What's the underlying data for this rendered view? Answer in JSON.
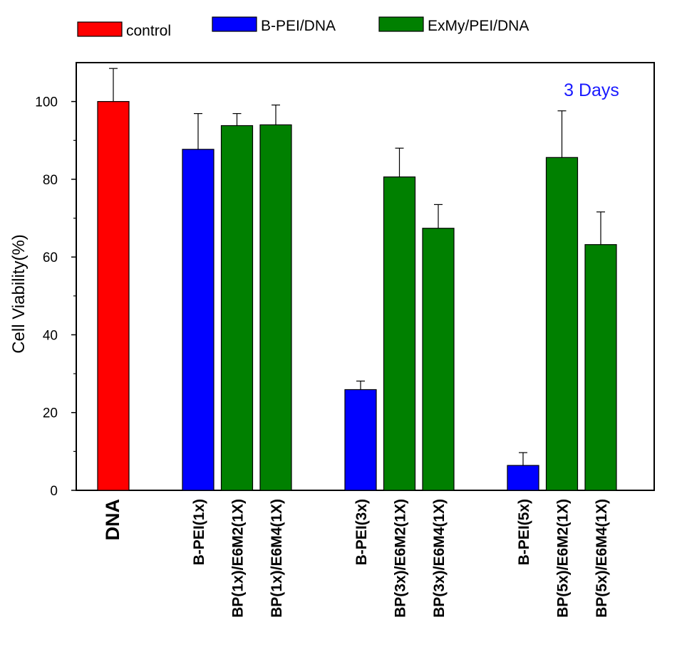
{
  "chart_data": {
    "type": "bar",
    "title": "",
    "xlabel": "",
    "ylabel": "Cell Viability(%)",
    "ylim": [
      0,
      110
    ],
    "yticks": [
      0,
      20,
      40,
      60,
      80,
      100
    ],
    "grid": false,
    "legend_position": "top",
    "annotation": {
      "text": "3 Days",
      "color": "#1a1aff",
      "position": "top-right"
    },
    "series": [
      {
        "name": "control",
        "color": "#ff0000"
      },
      {
        "name": "B-PEI/DNA",
        "color": "#0000ff"
      },
      {
        "name": "ExMy/PEI/DNA",
        "color": "#008000"
      }
    ],
    "categories": [
      "DNA",
      "B-PEI(1x)",
      "BP(1x)/E6M2(1X)",
      "BP(1x)/E6M4(1X)",
      "B-PEI(3x)",
      "BP(3x)/E6M2(1X)",
      "BP(3x)/E6M4(1X)",
      "B-PEI(5x)",
      "BP(5x)/E6M2(1X)",
      "BP(5x)/E6M4(1X)"
    ],
    "bars": [
      {
        "category": "DNA",
        "series": "control",
        "value": 100,
        "error": 8.5,
        "group": 0
      },
      {
        "category": "B-PEI(1x)",
        "series": "B-PEI/DNA",
        "value": 87.7,
        "error": 9.2,
        "group": 1
      },
      {
        "category": "BP(1x)/E6M2(1X)",
        "series": "ExMy/PEI/DNA",
        "value": 93.8,
        "error": 3.1,
        "group": 1
      },
      {
        "category": "BP(1x)/E6M4(1X)",
        "series": "ExMy/PEI/DNA",
        "value": 94.0,
        "error": 5.1,
        "group": 1
      },
      {
        "category": "B-PEI(3x)",
        "series": "B-PEI/DNA",
        "value": 25.9,
        "error": 2.2,
        "group": 2
      },
      {
        "category": "BP(3x)/E6M2(1X)",
        "series": "ExMy/PEI/DNA",
        "value": 80.6,
        "error": 7.4,
        "group": 2
      },
      {
        "category": "BP(3x)/E6M4(1X)",
        "series": "ExMy/PEI/DNA",
        "value": 67.4,
        "error": 6.1,
        "group": 2
      },
      {
        "category": "B-PEI(5x)",
        "series": "B-PEI/DNA",
        "value": 6.4,
        "error": 3.3,
        "group": 3
      },
      {
        "category": "BP(5x)/E6M2(1X)",
        "series": "ExMy/PEI/DNA",
        "value": 85.6,
        "error": 12.0,
        "group": 3
      },
      {
        "category": "BP(5x)/E6M4(1X)",
        "series": "ExMy/PEI/DNA",
        "value": 63.2,
        "error": 8.4,
        "group": 3
      }
    ]
  }
}
